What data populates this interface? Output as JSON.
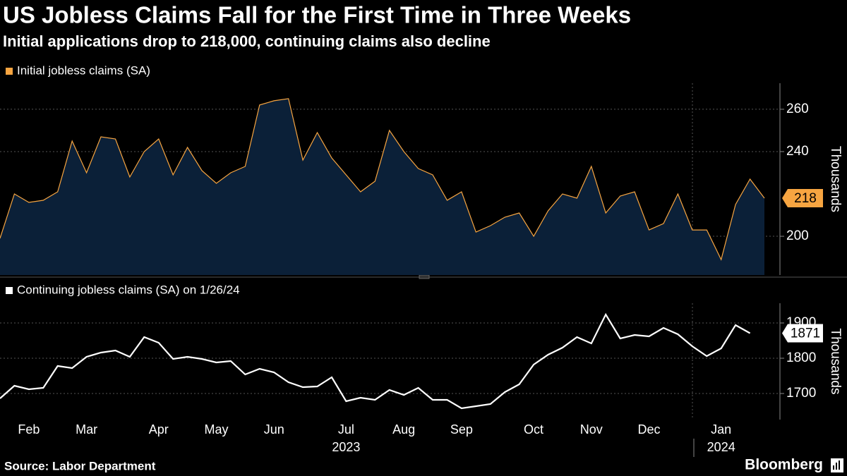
{
  "header": {
    "title": "US Jobless Claims Fall for the First Time in Three Weeks",
    "subtitle": "Initial applications drop to 218,000, continuing claims also decline"
  },
  "footer": {
    "source": "Source: Labor Department",
    "brand": "Bloomberg"
  },
  "chart_data": [
    {
      "type": "area",
      "grid": true,
      "legend": "top-left",
      "ylabel": "Thousands",
      "ylim": [
        181.7,
        272.3
      ],
      "yticks": [
        200,
        240,
        260
      ],
      "series": [
        {
          "name": "Initial jobless claims (SA)",
          "color": "#f7a541",
          "fill": "#0b2038",
          "values": [
            199,
            220,
            216,
            217,
            221,
            245,
            230,
            247,
            246,
            228,
            240,
            246,
            229,
            242,
            231,
            225,
            230,
            233,
            262,
            264,
            265,
            236,
            249,
            237,
            229,
            221,
            226,
            250,
            240,
            232,
            229,
            217,
            221,
            202,
            205,
            209,
            211,
            200,
            212,
            220,
            218,
            233,
            211,
            219,
            221,
            203,
            206,
            220,
            203,
            203,
            189,
            215,
            227,
            218
          ]
        }
      ]
    },
    {
      "type": "line",
      "grid": true,
      "legend": "top-left",
      "ylabel": "Thousands",
      "ylim": [
        1626,
        1956
      ],
      "yticks": [
        1700,
        1800,
        1900
      ],
      "categories": [
        null,
        null,
        "Feb",
        null,
        null,
        null,
        "Mar",
        null,
        null,
        null,
        null,
        "Apr",
        null,
        null,
        null,
        "May",
        null,
        null,
        null,
        "Jun",
        null,
        null,
        null,
        null,
        "Jul",
        null,
        null,
        null,
        "Aug",
        null,
        null,
        null,
        "Sep",
        null,
        null,
        null,
        null,
        "Oct",
        null,
        null,
        null,
        "Nov",
        null,
        null,
        null,
        "Dec",
        null,
        null,
        null,
        null,
        "Jan",
        null,
        null,
        null
      ],
      "year_labels": [
        null,
        null,
        null,
        null,
        null,
        null,
        null,
        null,
        null,
        null,
        null,
        null,
        null,
        null,
        null,
        null,
        null,
        null,
        null,
        null,
        null,
        null,
        null,
        null,
        "2023",
        null,
        null,
        null,
        null,
        null,
        null,
        null,
        null,
        null,
        null,
        null,
        null,
        null,
        null,
        null,
        null,
        null,
        null,
        null,
        null,
        null,
        null,
        null,
        null,
        null,
        "2024",
        null,
        null,
        null
      ],
      "series": [
        {
          "name": "Continuing jobless claims (SA) on 1/26/24",
          "color": "#ffffff",
          "values": [
            1686,
            1722,
            1712,
            1716,
            1778,
            1772,
            1804,
            1816,
            1822,
            1804,
            1860,
            1844,
            1798,
            1804,
            1798,
            1788,
            1792,
            1754,
            1770,
            1760,
            1732,
            1718,
            1720,
            1746,
            1678,
            1688,
            1682,
            1710,
            1696,
            1716,
            1682,
            1682,
            1658,
            1664,
            1670,
            1704,
            1726,
            1782,
            1810,
            1830,
            1860,
            1842,
            1924,
            1856,
            1866,
            1862,
            1886,
            1868,
            1834,
            1806,
            1828,
            1894,
            1871,
            null
          ]
        }
      ]
    }
  ]
}
